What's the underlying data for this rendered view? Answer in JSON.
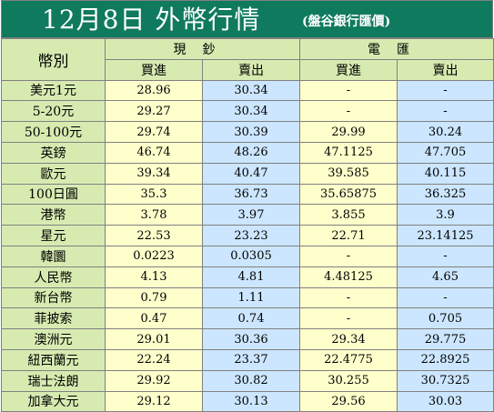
{
  "header": {
    "title": "12月8日 外幣行情",
    "source": "(盤谷銀行匯價)"
  },
  "table": {
    "currency_header": "幣別",
    "groups": [
      "現鈔",
      "電匯"
    ],
    "subheaders": [
      "買進",
      "賣出",
      "買進",
      "賣出"
    ],
    "rows": [
      {
        "name": "美元1元",
        "cash_buy": "28.96",
        "cash_sell": "30.34",
        "tt_buy": "-",
        "tt_sell": "-"
      },
      {
        "name": "5-20元",
        "cash_buy": "29.27",
        "cash_sell": "30.34",
        "tt_buy": "-",
        "tt_sell": "-"
      },
      {
        "name": "50-100元",
        "cash_buy": "29.74",
        "cash_sell": "30.39",
        "tt_buy": "29.99",
        "tt_sell": "30.24"
      },
      {
        "name": "英鎊",
        "cash_buy": "46.74",
        "cash_sell": "48.26",
        "tt_buy": "47.1125",
        "tt_sell": "47.705"
      },
      {
        "name": "歐元",
        "cash_buy": "39.34",
        "cash_sell": "40.47",
        "tt_buy": "39.585",
        "tt_sell": "40.115"
      },
      {
        "name": "100日圓",
        "cash_buy": "35.3",
        "cash_sell": "36.73",
        "tt_buy": "35.65875",
        "tt_sell": "36.325"
      },
      {
        "name": "港幣",
        "cash_buy": "3.78",
        "cash_sell": "3.97",
        "tt_buy": "3.855",
        "tt_sell": "3.9"
      },
      {
        "name": "星元",
        "cash_buy": "22.53",
        "cash_sell": "23.23",
        "tt_buy": "22.71",
        "tt_sell": "23.14125"
      },
      {
        "name": "韓圜",
        "cash_buy": "0.0223",
        "cash_sell": "0.0305",
        "tt_buy": "-",
        "tt_sell": "-"
      },
      {
        "name": "人民幣",
        "cash_buy": "4.13",
        "cash_sell": "4.81",
        "tt_buy": "4.48125",
        "tt_sell": "4.65"
      },
      {
        "name": "新台幣",
        "cash_buy": "0.79",
        "cash_sell": "1.11",
        "tt_buy": "-",
        "tt_sell": "-"
      },
      {
        "name": "菲披索",
        "cash_buy": "0.47",
        "cash_sell": "0.74",
        "tt_buy": "-",
        "tt_sell": "0.705"
      },
      {
        "name": "澳洲元",
        "cash_buy": "29.01",
        "cash_sell": "30.36",
        "tt_buy": "29.34",
        "tt_sell": "29.775"
      },
      {
        "name": "紐西蘭元",
        "cash_buy": "22.24",
        "cash_sell": "23.37",
        "tt_buy": "22.4775",
        "tt_sell": "22.8925"
      },
      {
        "name": "瑞士法朗",
        "cash_buy": "29.92",
        "cash_sell": "30.82",
        "tt_buy": "30.255",
        "tt_sell": "30.7325"
      },
      {
        "name": "加拿大元",
        "cash_buy": "29.12",
        "cash_sell": "30.13",
        "tt_buy": "29.56",
        "tt_sell": "30.03"
      }
    ]
  },
  "colors": {
    "header_bg": "#0f7a5e",
    "label_bg": "#d7ebb1",
    "buy_bg": "#ffffcc",
    "sell_bg": "#cce6ff"
  }
}
